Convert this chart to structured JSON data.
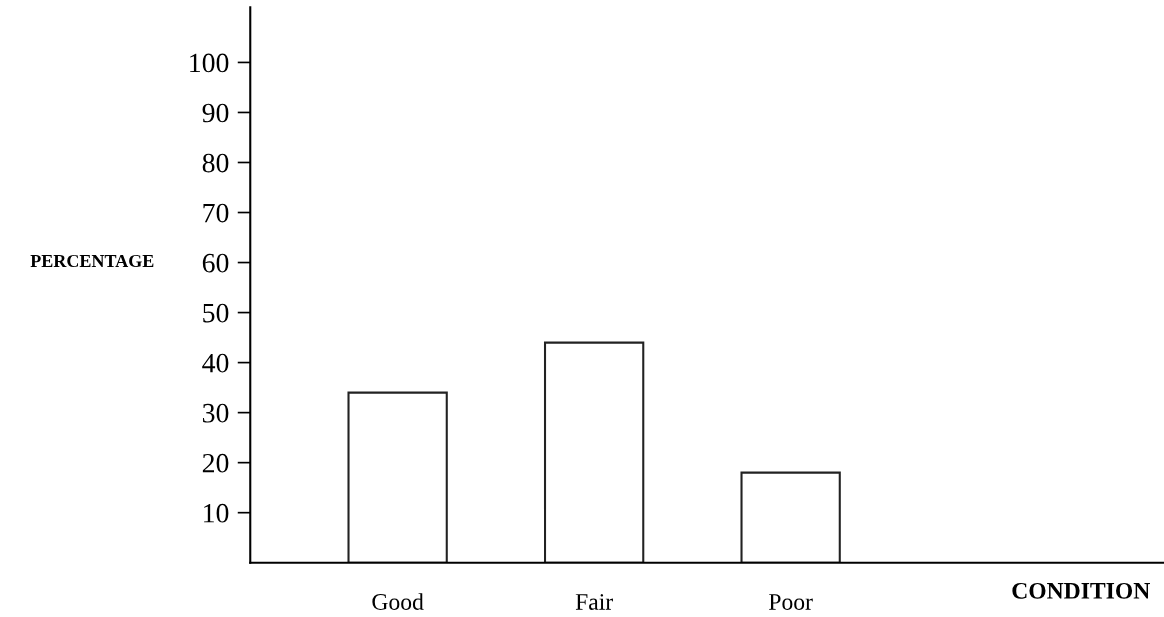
{
  "chart_data": {
    "type": "bar",
    "annotations": [
      "CONDITION"
    ],
    "ylabel": "PERCENTAGE",
    "categories": [
      "Good",
      "Fair",
      "Poor"
    ],
    "values": [
      34,
      44,
      18
    ],
    "color": "#ffffff",
    "ylim": [
      0,
      111
    ],
    "yticks": [
      10,
      20,
      30,
      40,
      50,
      60,
      70,
      80,
      90,
      100
    ],
    "grid": false
  }
}
